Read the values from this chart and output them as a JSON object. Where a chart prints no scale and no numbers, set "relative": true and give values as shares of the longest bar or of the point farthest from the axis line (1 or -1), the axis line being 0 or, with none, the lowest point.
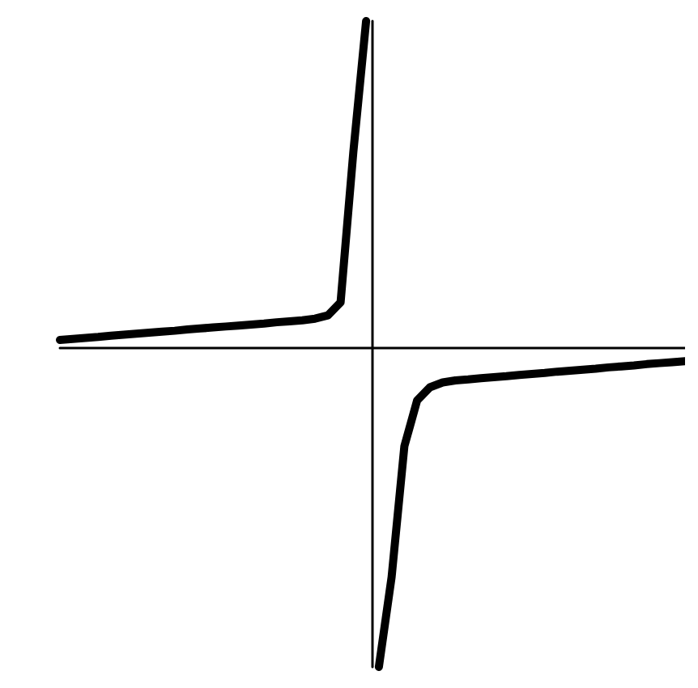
{
  "chart_data": {
    "type": "line",
    "relative": true,
    "grid": false,
    "line_style": "solid",
    "categories": [
      null,
      null,
      null,
      null,
      null,
      null,
      null,
      null,
      null,
      null,
      null,
      null,
      null,
      null,
      null,
      null,
      null,
      null,
      null,
      null,
      null,
      null,
      null,
      null,
      null,
      null,
      null,
      null,
      null,
      null,
      null,
      null,
      null,
      null,
      null,
      null,
      null,
      null,
      null,
      null,
      null,
      null,
      null,
      null,
      null,
      null,
      null,
      null,
      null,
      null
    ],
    "series": [
      {
        "color": "#000000",
        "values": [
          0.025,
          0.028,
          0.031,
          0.034,
          0.038,
          0.041,
          0.044,
          0.047,
          0.05,
          0.053,
          0.057,
          0.06,
          0.063,
          0.066,
          0.069,
          0.072,
          0.075,
          0.079,
          0.082,
          0.085,
          0.09,
          0.1,
          0.14,
          0.6,
          1.0,
          null,
          null,
          null,
          null,
          null,
          null,
          null,
          null,
          null,
          null,
          null,
          null,
          null,
          null,
          null,
          null,
          null,
          null,
          null,
          null,
          null,
          null,
          null,
          null,
          null
        ]
      },
      {
        "color": "#000000",
        "values": [
          null,
          null,
          null,
          null,
          null,
          null,
          null,
          null,
          null,
          null,
          null,
          null,
          null,
          null,
          null,
          null,
          null,
          null,
          null,
          null,
          null,
          null,
          null,
          null,
          null,
          -0.975,
          -0.7,
          -0.3,
          -0.16,
          -0.12,
          -0.105,
          -0.099,
          -0.096,
          -0.092,
          -0.089,
          -0.086,
          -0.082,
          -0.079,
          -0.076,
          -0.072,
          -0.069,
          -0.066,
          -0.063,
          -0.059,
          -0.056,
          -0.053,
          -0.049,
          -0.046,
          -0.043,
          -0.04
        ]
      }
    ]
  }
}
